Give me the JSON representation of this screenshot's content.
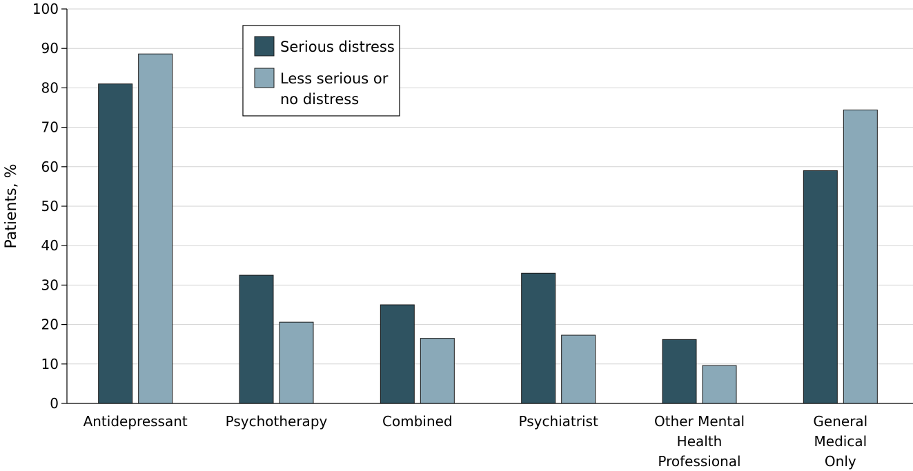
{
  "chart_data": {
    "type": "bar",
    "title": "",
    "xlabel": "",
    "ylabel": "Patients, %",
    "ylim": [
      0,
      100
    ],
    "yticks": [
      0,
      10,
      20,
      30,
      40,
      50,
      60,
      70,
      80,
      90,
      100
    ],
    "grid": true,
    "legend": "top-left",
    "categories": [
      [
        "Antidepressant"
      ],
      [
        "Psychotherapy"
      ],
      [
        "Combined"
      ],
      [
        "Psychiatrist"
      ],
      [
        "Other Mental",
        "Health",
        "Professional"
      ],
      [
        "General",
        "Medical",
        "Only"
      ]
    ],
    "series": [
      {
        "name": [
          "Serious distress"
        ],
        "color": "#2f5361",
        "values": [
          81,
          32.5,
          25,
          33,
          16.2,
          59
        ]
      },
      {
        "name": [
          "Less serious or",
          "no distress"
        ],
        "color": "#8aa9b8",
        "values": [
          88.6,
          20.6,
          16.5,
          17.3,
          9.6,
          74.4
        ]
      }
    ]
  }
}
